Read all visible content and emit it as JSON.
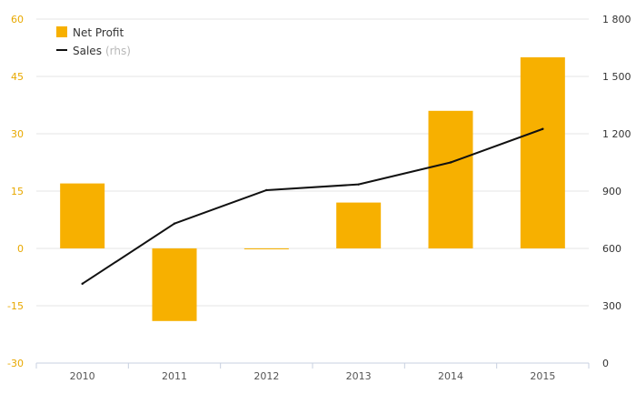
{
  "chart_data": {
    "type": "bar",
    "categories": [
      "2010",
      "2011",
      "2012",
      "2013",
      "2014",
      "2015"
    ],
    "series": [
      {
        "name": "Net Profit",
        "type": "bar",
        "axis": "left",
        "color": "#f7b000",
        "values": [
          17,
          -19,
          0,
          12,
          36,
          50
        ]
      },
      {
        "name": "Sales",
        "name_suffix": "(rhs)",
        "type": "line",
        "axis": "right",
        "color": "#111111",
        "values": [
          415,
          730,
          905,
          935,
          1050,
          1225
        ]
      }
    ],
    "y_left": {
      "lim": [
        -30,
        60
      ],
      "ticks": [
        -30,
        -15,
        0,
        15,
        30,
        45,
        60
      ],
      "tick_labels": [
        "-30",
        "-15",
        "0",
        "15",
        "30",
        "45",
        "60"
      ],
      "tick_color": "#e8a800"
    },
    "y_right": {
      "lim": [
        0,
        1800
      ],
      "ticks": [
        0,
        300,
        600,
        900,
        1200,
        1500,
        1800
      ],
      "tick_labels": [
        "0",
        "300",
        "600",
        "900",
        "1 200",
        "1 500",
        "1 800"
      ]
    },
    "grid": true,
    "legend_position": "top-left",
    "title": "",
    "xlabel": "",
    "ylabel": ""
  }
}
